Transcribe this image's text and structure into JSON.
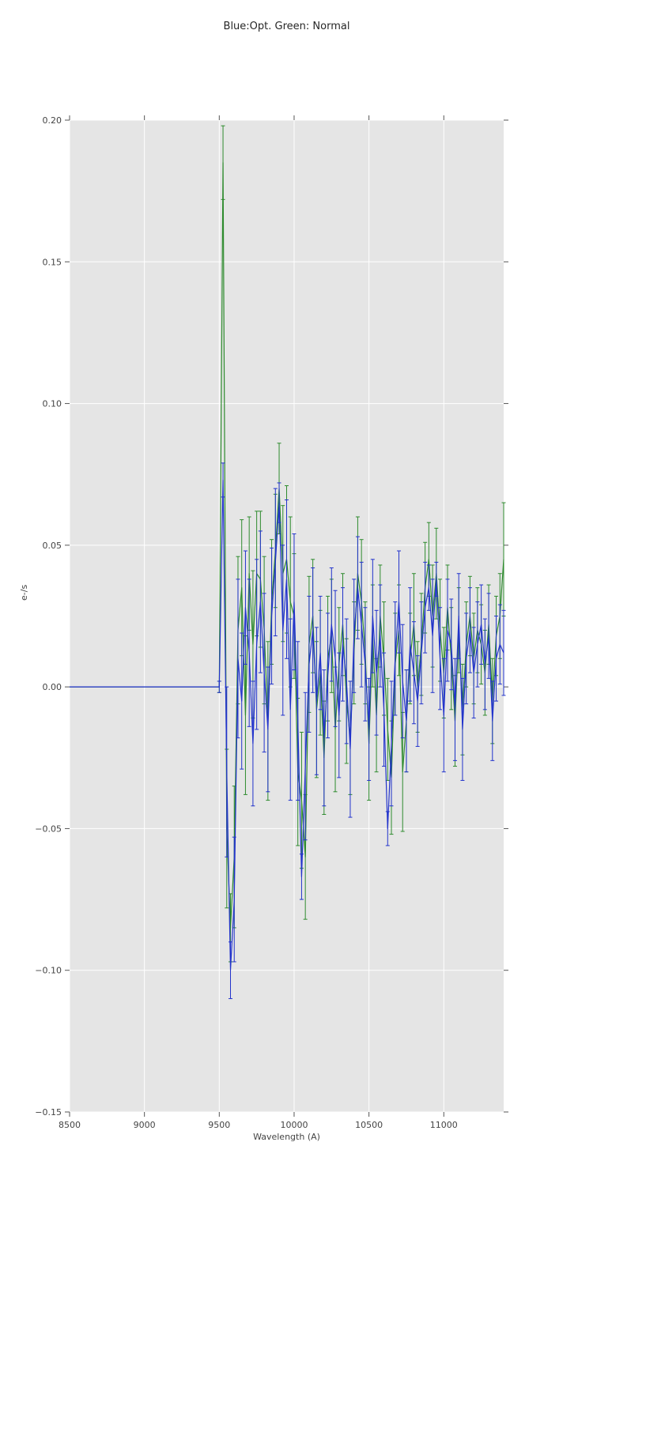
{
  "title": "Blue:Opt. Green: Normal",
  "axes": {
    "xlabel": "Wavelength (A)",
    "ylabel": "e-/s"
  },
  "chart_data": {
    "type": "line",
    "title": "Blue:Opt. Green: Normal",
    "xlabel": "Wavelength (A)",
    "ylabel": "e-/s",
    "xlim": [
      8500,
      11400
    ],
    "ylim": [
      -0.15,
      0.2
    ],
    "x_ticks": [
      8500,
      9000,
      9500,
      10000,
      10500,
      11000
    ],
    "x_tick_labels": [
      "8500",
      "9000",
      "9500",
      "10000",
      "10500",
      "11000"
    ],
    "y_ticks": [
      0.2,
      0.15,
      0.1,
      0.05,
      0.0,
      -0.05,
      -0.1,
      -0.15
    ],
    "y_tick_labels": [
      "0.20",
      "0.15",
      "0.10",
      "0.05",
      "0.00",
      "−0.05",
      "−0.10",
      "−0.15"
    ],
    "grid": true,
    "legend": "none",
    "error_bars": true,
    "background": "#e5e5e5",
    "grid_color": "#ffffff",
    "tick_color": "#555555",
    "flat_segment": {
      "x_start": 8500,
      "x_end": 9500,
      "y": 0.0
    },
    "x": [
      9500,
      9525,
      9550,
      9575,
      9600,
      9625,
      9650,
      9675,
      9700,
      9725,
      9750,
      9775,
      9800,
      9825,
      9850,
      9875,
      9900,
      9925,
      9950,
      9975,
      10000,
      10025,
      10050,
      10075,
      10100,
      10125,
      10150,
      10175,
      10200,
      10225,
      10250,
      10275,
      10300,
      10325,
      10350,
      10375,
      10400,
      10425,
      10450,
      10475,
      10500,
      10525,
      10550,
      10575,
      10600,
      10625,
      10650,
      10675,
      10700,
      10725,
      10750,
      10775,
      10800,
      10825,
      10850,
      10875,
      10900,
      10925,
      10950,
      10975,
      11000,
      11025,
      11050,
      11075,
      11100,
      11125,
      11150,
      11175,
      11200,
      11225,
      11250,
      11275,
      11300,
      11325,
      11350,
      11375,
      11400
    ],
    "series": [
      {
        "name": "Blue (Opt.)",
        "color": "#2233cc",
        "values": [
          0.0,
          0.073,
          -0.03,
          -0.1,
          -0.075,
          0.01,
          -0.005,
          0.028,
          0.012,
          -0.02,
          0.015,
          0.03,
          0.005,
          -0.015,
          0.025,
          0.044,
          0.065,
          0.02,
          0.038,
          -0.008,
          0.03,
          -0.012,
          -0.067,
          -0.028,
          0.008,
          0.02,
          -0.005,
          0.012,
          -0.018,
          0.004,
          0.022,
          0.01,
          -0.01,
          0.015,
          0.002,
          -0.022,
          0.018,
          0.035,
          0.022,
          0.008,
          -0.015,
          0.025,
          0.005,
          0.018,
          -0.008,
          -0.05,
          -0.02,
          0.01,
          0.03,
          0.002,
          -0.012,
          0.015,
          0.005,
          -0.005,
          0.012,
          0.028,
          0.035,
          0.018,
          0.038,
          0.01,
          -0.01,
          0.02,
          0.015,
          -0.008,
          0.025,
          -0.015,
          0.01,
          0.02,
          0.005,
          0.015,
          0.022,
          0.008,
          0.018,
          -0.012,
          0.01,
          0.015,
          0.012
        ],
        "errors": [
          0.002,
          0.006,
          0.03,
          0.01,
          0.022,
          0.028,
          0.024,
          0.02,
          0.026,
          0.022,
          0.03,
          0.025,
          0.028,
          0.022,
          0.024,
          0.026,
          0.007,
          0.03,
          0.028,
          0.032,
          0.024,
          0.028,
          0.008,
          0.026,
          0.024,
          0.022,
          0.026,
          0.02,
          0.024,
          0.022,
          0.02,
          0.024,
          0.022,
          0.02,
          0.022,
          0.024,
          0.02,
          0.018,
          0.022,
          0.02,
          0.018,
          0.02,
          0.022,
          0.018,
          0.02,
          0.006,
          0.022,
          0.02,
          0.018,
          0.02,
          0.018,
          0.02,
          0.018,
          0.016,
          0.018,
          0.016,
          0.008,
          0.02,
          0.006,
          0.018,
          0.02,
          0.018,
          0.016,
          0.018,
          0.015,
          0.018,
          0.016,
          0.015,
          0.016,
          0.015,
          0.014,
          0.016,
          0.015,
          0.014,
          0.015,
          0.014,
          0.015
        ]
      },
      {
        "name": "Green (Normal)",
        "color": "#2e8b2e",
        "values": [
          0.0,
          0.185,
          -0.05,
          -0.085,
          -0.06,
          0.02,
          0.035,
          -0.01,
          0.04,
          0.015,
          0.04,
          0.038,
          0.02,
          -0.012,
          0.03,
          0.048,
          0.07,
          0.04,
          0.045,
          0.03,
          0.025,
          -0.03,
          -0.04,
          -0.06,
          0.015,
          0.025,
          -0.008,
          0.005,
          -0.025,
          0.01,
          0.018,
          -0.015,
          0.008,
          0.022,
          -0.005,
          -0.018,
          0.012,
          0.04,
          0.03,
          0.012,
          -0.02,
          0.018,
          -0.01,
          0.025,
          0.01,
          -0.015,
          -0.032,
          0.008,
          0.02,
          -0.03,
          -0.012,
          0.01,
          0.022,
          0.0,
          0.015,
          0.035,
          0.045,
          0.025,
          0.04,
          0.02,
          0.005,
          0.028,
          0.01,
          -0.012,
          0.02,
          -0.008,
          0.015,
          0.025,
          0.01,
          0.02,
          0.015,
          0.005,
          0.022,
          -0.005,
          0.018,
          0.025,
          0.045
        ],
        "errors": [
          0.002,
          0.013,
          0.028,
          0.012,
          0.025,
          0.026,
          0.024,
          0.028,
          0.02,
          0.026,
          0.022,
          0.024,
          0.026,
          0.028,
          0.022,
          0.02,
          0.016,
          0.024,
          0.026,
          0.03,
          0.022,
          0.026,
          0.024,
          0.022,
          0.024,
          0.02,
          0.024,
          0.022,
          0.02,
          0.022,
          0.02,
          0.022,
          0.02,
          0.018,
          0.022,
          0.02,
          0.018,
          0.02,
          0.022,
          0.018,
          0.02,
          0.018,
          0.02,
          0.018,
          0.02,
          0.018,
          0.02,
          0.018,
          0.016,
          0.021,
          0.018,
          0.016,
          0.018,
          0.016,
          0.018,
          0.016,
          0.013,
          0.018,
          0.016,
          0.018,
          0.016,
          0.015,
          0.018,
          0.016,
          0.015,
          0.016,
          0.015,
          0.014,
          0.016,
          0.015,
          0.014,
          0.015,
          0.014,
          0.015,
          0.014,
          0.015,
          0.02
        ]
      }
    ]
  }
}
